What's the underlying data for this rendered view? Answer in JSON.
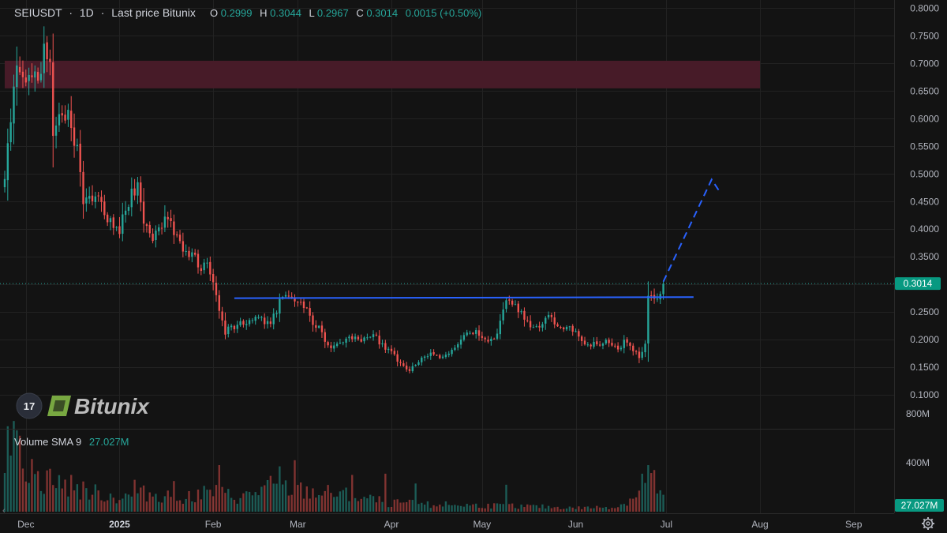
{
  "header": {
    "symbol": "SEIUSDT",
    "sep1": "·",
    "interval": "1D",
    "sep2": "·",
    "price_source": "Last price Bitunix",
    "ohlc": [
      {
        "key": "O",
        "value": "0.2999"
      },
      {
        "key": "H",
        "value": "0.3044"
      },
      {
        "key": "L",
        "value": "0.2967"
      },
      {
        "key": "C",
        "value": "0.3014"
      }
    ],
    "change": "0.0015 (+0.50%)"
  },
  "volume_header": {
    "label": "Volume SMA 9",
    "value": "27.027M"
  },
  "watermark": {
    "tv_mark": "17",
    "brand": "Bitunix"
  },
  "last_price_badge": "0.3014",
  "volume_badge": "27.027M",
  "colors": {
    "background": "#131313",
    "grid": "#222222",
    "up": "#26a69a",
    "down": "#ef5350",
    "resistance_zone": "#4a1b29",
    "neckline": "#2962ff",
    "projection": "#2962ff",
    "text": "#d1d4dc",
    "muted_text": "#b2b5be",
    "badge_green": "#089981"
  },
  "icons": {
    "settings": "gear-icon",
    "scroll_left": "chevron-left-icon"
  },
  "chart_data": {
    "type": "candlestick",
    "symbol": "SEIUSDT",
    "interval": "1D",
    "price_axis": {
      "ylim": [
        0.07,
        0.805
      ],
      "ticks": [
        "0.8000",
        "0.7500",
        "0.7000",
        "0.6500",
        "0.6000",
        "0.5500",
        "0.5000",
        "0.4500",
        "0.4000",
        "0.3500",
        "0.3000",
        "0.2500",
        "0.2000",
        "0.1500",
        "0.1000"
      ],
      "tick_values": [
        0.8,
        0.75,
        0.7,
        0.65,
        0.6,
        0.55,
        0.5,
        0.45,
        0.4,
        0.35,
        0.3,
        0.25,
        0.2,
        0.15,
        0.1
      ]
    },
    "volume_axis": {
      "ticks": [
        "800M",
        "400M"
      ],
      "tick_values": [
        800,
        400
      ],
      "max": 870
    },
    "time_axis": {
      "start": "2024-11-24",
      "end": "2025-09-11",
      "labels": [
        "Dec",
        "2025",
        "Feb",
        "Mar",
        "Apr",
        "May",
        "Jun",
        "Jul",
        "Aug",
        "Sep"
      ],
      "dates": [
        "2024-12-01",
        "2025-01-01",
        "2025-02-01",
        "2025-03-01",
        "2025-04-01",
        "2025-05-01",
        "2025-06-01",
        "2025-07-01",
        "2025-08-01",
        "2025-09-01"
      ],
      "bold": [
        false,
        true,
        false,
        false,
        false,
        false,
        false,
        false,
        false,
        false
      ]
    },
    "grid": true,
    "last_price": 0.3014,
    "volume_last_sma": 27.027,
    "annotations": {
      "resistance_zone": {
        "price_top": 0.705,
        "price_bottom": 0.655,
        "from": "2024-11-24",
        "to": "2025-08-01"
      },
      "neckline": {
        "price_left": 0.275,
        "price_right": 0.277,
        "from": "2025-02-08",
        "to": "2025-07-10"
      },
      "projection": {
        "points": [
          [
            "2025-06-30",
            0.305
          ],
          [
            "2025-07-16",
            0.49
          ],
          [
            "2025-07-19",
            0.465
          ]
        ]
      }
    },
    "price_path": [
      [
        "2024-11-24",
        0.5
      ],
      [
        "2024-11-26",
        0.61
      ],
      [
        "2024-11-28",
        0.68
      ],
      [
        "2024-12-01",
        0.66
      ],
      [
        "2024-12-04",
        0.7
      ],
      [
        "2024-12-06",
        0.67
      ],
      [
        "2024-12-07",
        0.72
      ],
      [
        "2024-12-09",
        0.69
      ],
      [
        "2024-12-10",
        0.58
      ],
      [
        "2024-12-12",
        0.6
      ],
      [
        "2024-12-14",
        0.61
      ],
      [
        "2024-12-16",
        0.59
      ],
      [
        "2024-12-18",
        0.54
      ],
      [
        "2024-12-20",
        0.44
      ],
      [
        "2024-12-22",
        0.45
      ],
      [
        "2024-12-25",
        0.46
      ],
      [
        "2024-12-28",
        0.42
      ],
      [
        "2025-01-01",
        0.4
      ],
      [
        "2025-01-05",
        0.46
      ],
      [
        "2025-01-07",
        0.48
      ],
      [
        "2025-01-09",
        0.41
      ],
      [
        "2025-01-12",
        0.39
      ],
      [
        "2025-01-15",
        0.41
      ],
      [
        "2025-01-18",
        0.42
      ],
      [
        "2025-01-20",
        0.38
      ],
      [
        "2025-01-23",
        0.35
      ],
      [
        "2025-01-26",
        0.36
      ],
      [
        "2025-01-28",
        0.32
      ],
      [
        "2025-01-30",
        0.34
      ],
      [
        "2025-02-01",
        0.3
      ],
      [
        "2025-02-03",
        0.245
      ],
      [
        "2025-02-05",
        0.215
      ],
      [
        "2025-02-08",
        0.225
      ],
      [
        "2025-02-12",
        0.23
      ],
      [
        "2025-02-16",
        0.24
      ],
      [
        "2025-02-20",
        0.225
      ],
      [
        "2025-02-23",
        0.27
      ],
      [
        "2025-02-26",
        0.285
      ],
      [
        "2025-02-28",
        0.265
      ],
      [
        "2025-03-02",
        0.275
      ],
      [
        "2025-03-05",
        0.24
      ],
      [
        "2025-03-08",
        0.22
      ],
      [
        "2025-03-11",
        0.185
      ],
      [
        "2025-03-14",
        0.195
      ],
      [
        "2025-03-18",
        0.205
      ],
      [
        "2025-03-22",
        0.2
      ],
      [
        "2025-03-26",
        0.21
      ],
      [
        "2025-03-29",
        0.19
      ],
      [
        "2025-04-02",
        0.17
      ],
      [
        "2025-04-07",
        0.145
      ],
      [
        "2025-04-10",
        0.16
      ],
      [
        "2025-04-13",
        0.175
      ],
      [
        "2025-04-17",
        0.17
      ],
      [
        "2025-04-22",
        0.18
      ],
      [
        "2025-04-25",
        0.205
      ],
      [
        "2025-04-28",
        0.215
      ],
      [
        "2025-05-02",
        0.2
      ],
      [
        "2025-05-06",
        0.21
      ],
      [
        "2025-05-09",
        0.27
      ],
      [
        "2025-05-12",
        0.265
      ],
      [
        "2025-05-15",
        0.235
      ],
      [
        "2025-05-19",
        0.22
      ],
      [
        "2025-05-23",
        0.24
      ],
      [
        "2025-05-27",
        0.225
      ],
      [
        "2025-05-31",
        0.215
      ],
      [
        "2025-06-04",
        0.195
      ],
      [
        "2025-06-08",
        0.19
      ],
      [
        "2025-06-12",
        0.195
      ],
      [
        "2025-06-15",
        0.18
      ],
      [
        "2025-06-17",
        0.2
      ],
      [
        "2025-06-19",
        0.185
      ],
      [
        "2025-06-22",
        0.17
      ],
      [
        "2025-06-24",
        0.195
      ],
      [
        "2025-06-25",
        0.28
      ],
      [
        "2025-06-27",
        0.27
      ],
      [
        "2025-06-29",
        0.29
      ],
      [
        "2025-06-30",
        0.3014
      ]
    ],
    "volume_profile_millions": [
      [
        "2024-11-24",
        500
      ],
      [
        "2024-11-30",
        450
      ],
      [
        "2024-12-05",
        260
      ],
      [
        "2024-12-10",
        230
      ],
      [
        "2024-12-20",
        170
      ],
      [
        "2025-01-01",
        110
      ],
      [
        "2025-01-10",
        150
      ],
      [
        "2025-01-20",
        120
      ],
      [
        "2025-02-01",
        160
      ],
      [
        "2025-02-10",
        110
      ],
      [
        "2025-02-20",
        200
      ],
      [
        "2025-03-01",
        170
      ],
      [
        "2025-03-15",
        140
      ],
      [
        "2025-04-01",
        70
      ],
      [
        "2025-04-15",
        60
      ],
      [
        "2025-05-01",
        50
      ],
      [
        "2025-05-15",
        45
      ],
      [
        "2025-06-01",
        30
      ],
      [
        "2025-06-15",
        40
      ],
      [
        "2025-06-22",
        150
      ],
      [
        "2025-06-26",
        250
      ],
      [
        "2025-06-30",
        120
      ]
    ],
    "volume_spikes_millions": [
      [
        "2024-11-27",
        740
      ],
      [
        "2024-11-29",
        620
      ],
      [
        "2024-12-03",
        430
      ],
      [
        "2024-12-09",
        350
      ],
      [
        "2024-12-16",
        300
      ],
      [
        "2025-01-06",
        260
      ],
      [
        "2025-01-19",
        250
      ],
      [
        "2025-02-03",
        380
      ],
      [
        "2025-02-23",
        370
      ],
      [
        "2025-02-28",
        420
      ],
      [
        "2025-03-19",
        300
      ],
      [
        "2025-03-30",
        310
      ],
      [
        "2025-04-09",
        230
      ],
      [
        "2025-05-09",
        220
      ],
      [
        "2025-06-23",
        310
      ],
      [
        "2025-06-25",
        380
      ],
      [
        "2025-06-27",
        340
      ]
    ]
  }
}
